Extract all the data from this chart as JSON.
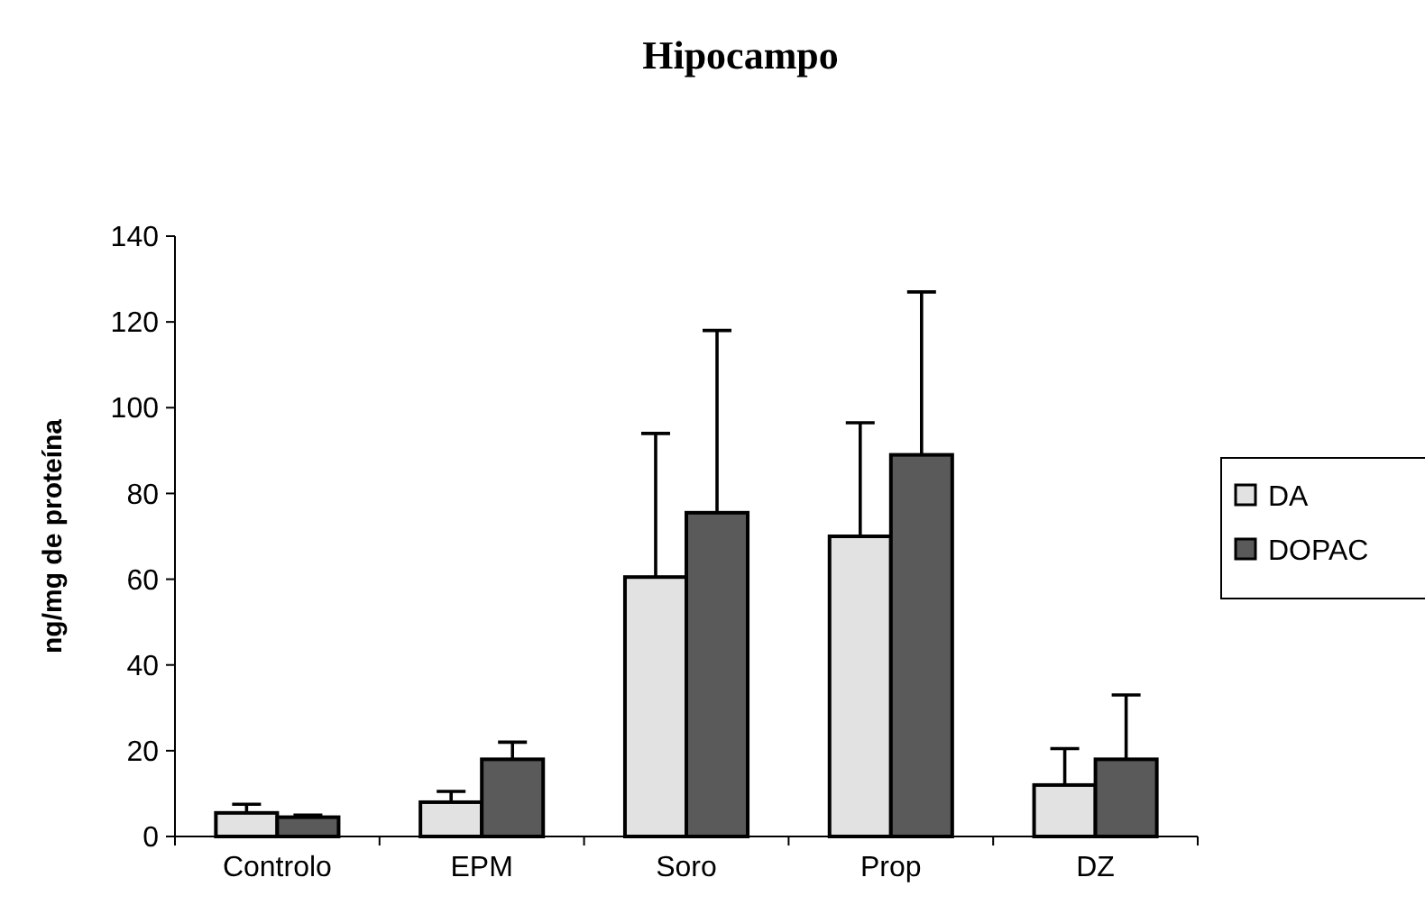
{
  "chart_data": {
    "type": "bar",
    "title": "Hipocampo",
    "ylabel": "ng/mg de proteína",
    "categories": [
      "Controlo",
      "EPM",
      "Soro",
      "Prop",
      "DZ"
    ],
    "series": [
      {
        "name": "DA",
        "color": "#e2e2e2",
        "values": [
          5.5,
          8,
          60.5,
          70,
          12
        ],
        "errors": [
          [
            5.5,
            7.5
          ],
          [
            8,
            10.5
          ],
          [
            60.5,
            94
          ],
          [
            70,
            96.5
          ],
          [
            12,
            20.5
          ]
        ]
      },
      {
        "name": "DOPAC",
        "color": "#5a5a5a",
        "values": [
          4.5,
          18,
          75.5,
          89,
          18
        ],
        "errors": [
          [
            4.5,
            5
          ],
          [
            18,
            22
          ],
          [
            75.5,
            118
          ],
          [
            89,
            127
          ],
          [
            18,
            33
          ]
        ]
      }
    ],
    "ylim": [
      0,
      140
    ],
    "yticks": [
      0,
      20,
      40,
      60,
      80,
      100,
      120,
      140
    ],
    "grid": false,
    "legend": "right"
  }
}
